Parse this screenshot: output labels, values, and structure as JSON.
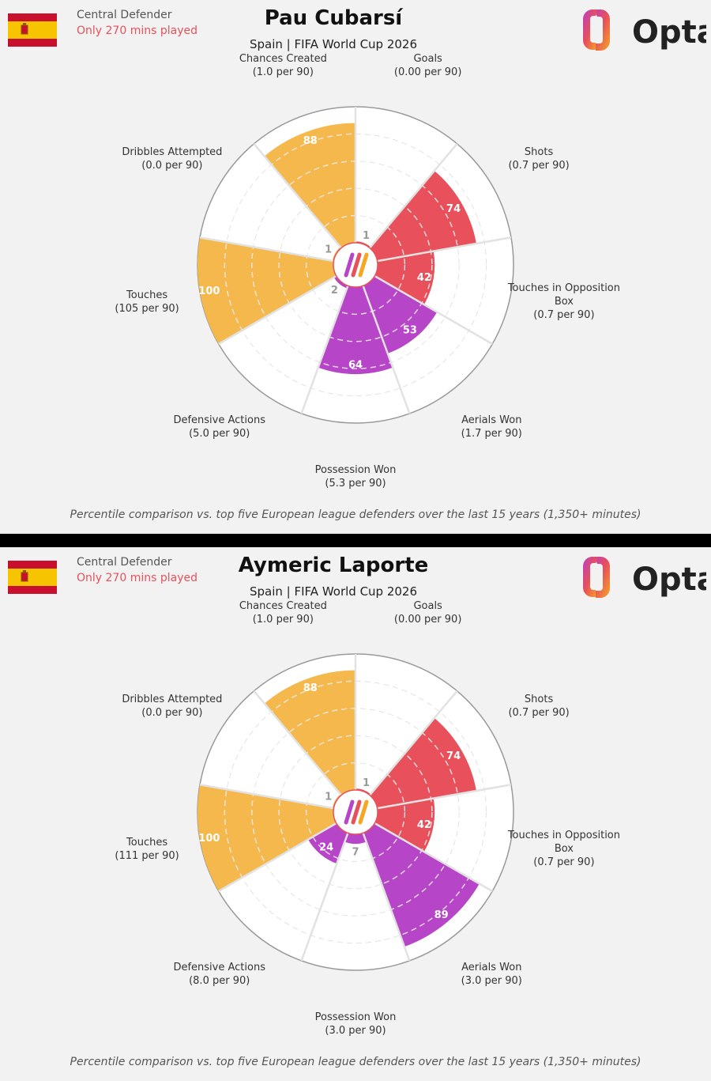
{
  "footnote": "Percentile comparison vs. top five European league defenders over the last 15 years (1,350+ minutes)",
  "logo": {
    "text": "Opta"
  },
  "colors": {
    "attack_yellow": "#f5b84c",
    "shooting_red": "#e8505b",
    "defence_purple": "#b646c7",
    "background": "#f2f2f2"
  },
  "chart_data": [
    {
      "type": "polar-bar",
      "title": "Pau Cubarsí",
      "subtitle": "Spain | FIFA World Cup 2026",
      "position": "Central Defender",
      "minutes_note": "Only 270 mins played",
      "rlim": [
        0,
        100
      ],
      "categories": [
        "Goals",
        "Shots",
        "Touches in Opposition Box",
        "Aerials Won",
        "Possession Won",
        "Defensive Actions",
        "Touches",
        "Dribbles Attempted",
        "Chances Created"
      ],
      "per90": [
        "(0.00 per 90)",
        "(0.7 per 90)",
        "(0.7 per 90)",
        "(1.7 per 90)",
        "(5.3 per 90)",
        "(5.0 per 90)",
        "(105 per 90)",
        "(0.0 per 90)",
        "(1.0 per 90)"
      ],
      "values": [
        1,
        74,
        42,
        53,
        64,
        2,
        100,
        1,
        88
      ],
      "groups": [
        "shooting",
        "shooting",
        "shooting",
        "defence",
        "defence",
        "defence",
        "attack",
        "attack",
        "attack"
      ]
    },
    {
      "type": "polar-bar",
      "title": "Aymeric Laporte",
      "subtitle": "Spain | FIFA World Cup 2026",
      "position": "Central Defender",
      "minutes_note": "Only 270 mins played",
      "rlim": [
        0,
        100
      ],
      "categories": [
        "Goals",
        "Shots",
        "Touches in Opposition Box",
        "Aerials Won",
        "Possession Won",
        "Defensive Actions",
        "Touches",
        "Dribbles Attempted",
        "Chances Created"
      ],
      "per90": [
        "(0.00 per 90)",
        "(0.7 per 90)",
        "(0.7 per 90)",
        "(3.0 per 90)",
        "(3.0 per 90)",
        "(8.0 per 90)",
        "(111 per 90)",
        "(0.0 per 90)",
        "(1.0 per 90)"
      ],
      "values": [
        1,
        74,
        42,
        89,
        7,
        24,
        100,
        1,
        88
      ],
      "groups": [
        "shooting",
        "shooting",
        "shooting",
        "defence",
        "defence",
        "defence",
        "attack",
        "attack",
        "attack"
      ]
    }
  ]
}
